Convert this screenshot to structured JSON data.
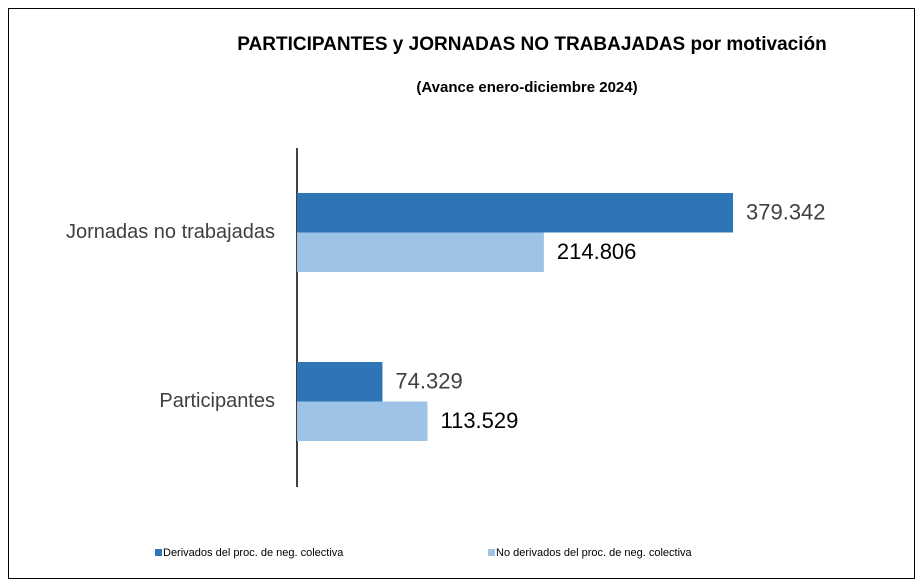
{
  "chart_data": {
    "type": "hbar",
    "title": "PARTICIPANTES y JORNADAS NO TRABAJADAS  por motivación",
    "subtitle": "(Avance enero-diciembre 2024)",
    "categories": [
      "Jornadas no trabajadas",
      "Participantes"
    ],
    "series": [
      {
        "name": "Derivados del proc. de neg. colectiva",
        "color": "#2e75b6",
        "values": [
          379342,
          74329
        ],
        "value_labels": [
          "379.342",
          "74.329"
        ]
      },
      {
        "name": "No derivados del proc. de neg. colectiva",
        "color": "#9dc3e6",
        "values": [
          214806,
          113529
        ],
        "value_labels": [
          "214.806",
          "113.529"
        ]
      }
    ]
  }
}
